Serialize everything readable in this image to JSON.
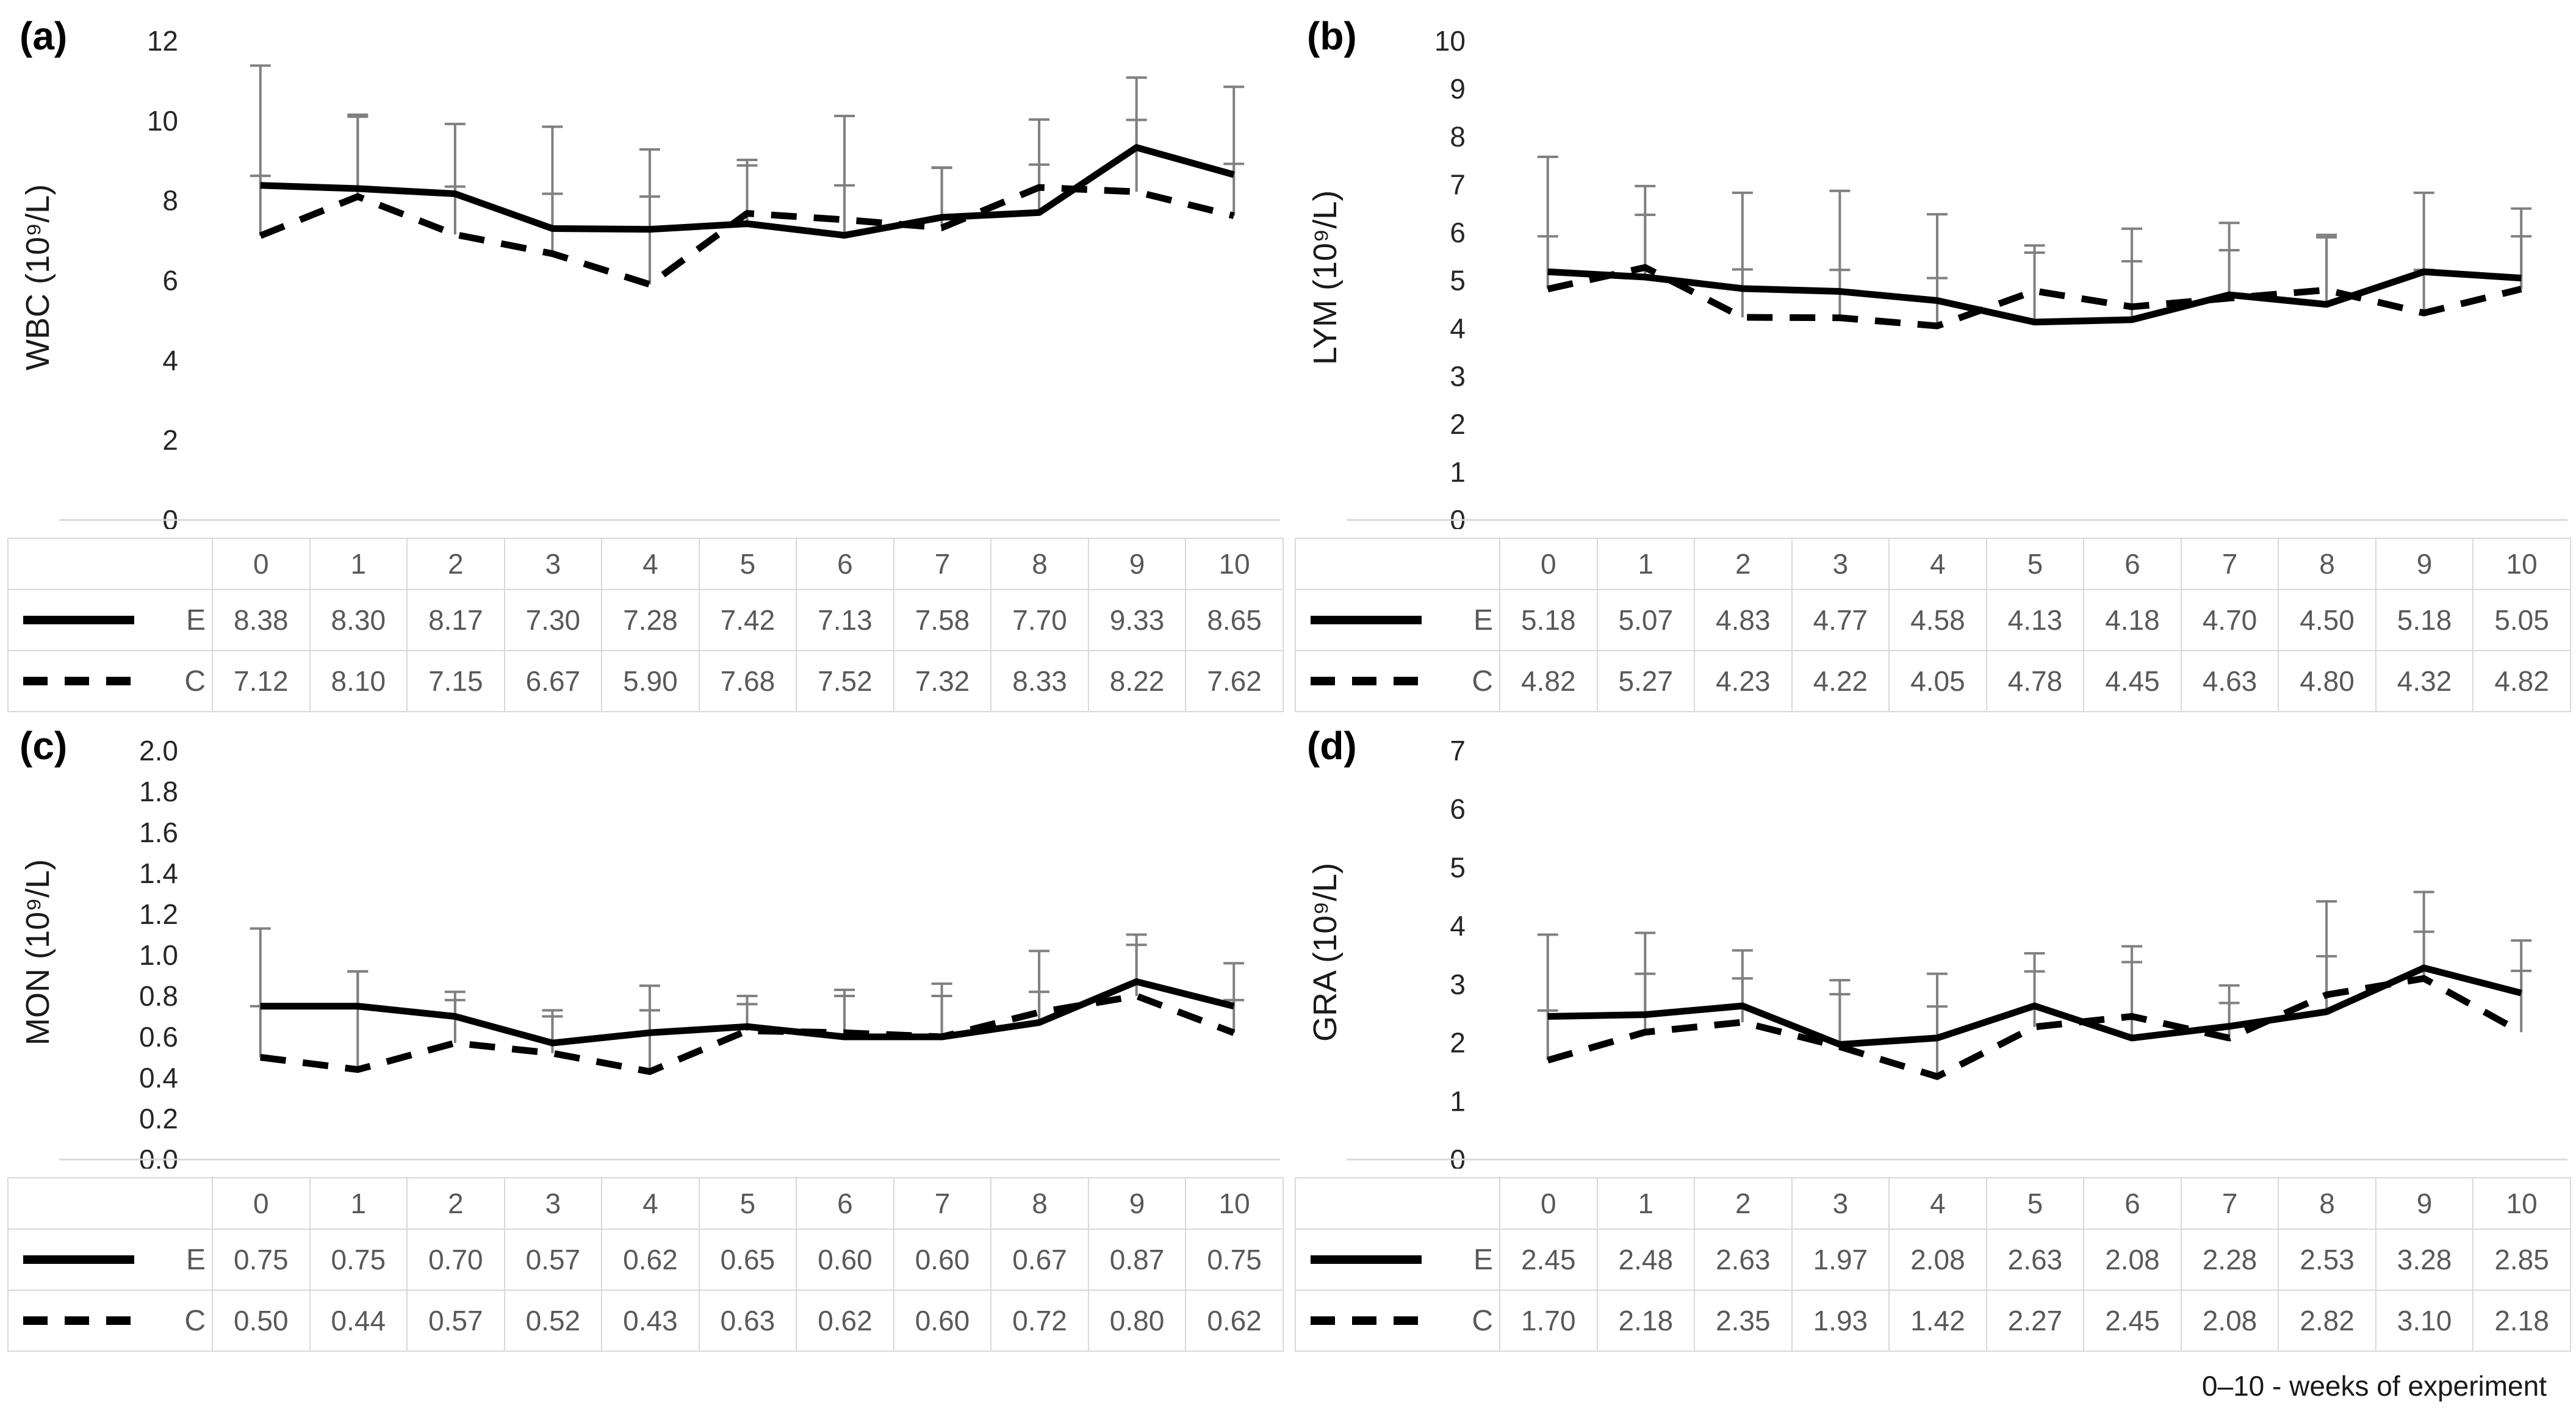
{
  "figure": {
    "footnote": "0–10 - weeks of experiment",
    "colors": {
      "line": "#000000",
      "error_bar": "#808080",
      "axis_line": "#d9d9d9",
      "tick_text": "#262626",
      "table_border": "#d9d9d9",
      "table_text": "#595959"
    }
  },
  "chart_data": [
    {
      "panel": "a",
      "panel_label": "(a)",
      "type": "line",
      "ylabel": "WBC (10⁹/L)",
      "xlabel": "",
      "ylim": [
        0,
        12
      ],
      "ytick_values": [
        12,
        10,
        8,
        6,
        4,
        2,
        0
      ],
      "ytick_labels": [
        "12",
        "10",
        "8",
        "6",
        "4",
        "2",
        "0"
      ],
      "categories": [
        "0",
        "1",
        "2",
        "3",
        "4",
        "5",
        "6",
        "7",
        "8",
        "9",
        "10"
      ],
      "grid": false,
      "legend_position": "table-left",
      "series": [
        {
          "name": "E",
          "line_style": "solid",
          "values": [
            8.38,
            8.3,
            8.17,
            7.3,
            7.28,
            7.42,
            7.13,
            7.58,
            7.7,
            9.33,
            8.65
          ],
          "errors_plus": [
            3.0,
            1.85,
            1.75,
            2.55,
            2.0,
            1.6,
            1.25,
            1.25,
            1.2,
            1.75,
            2.2
          ]
        },
        {
          "name": "C",
          "line_style": "dashed",
          "values": [
            7.12,
            8.1,
            7.15,
            6.67,
            5.9,
            7.68,
            7.52,
            7.32,
            8.33,
            8.22,
            7.62
          ],
          "errors_plus": [
            1.5,
            2.0,
            1.2,
            1.5,
            2.2,
            1.2,
            2.6,
            1.5,
            1.7,
            1.8,
            1.3
          ]
        }
      ]
    },
    {
      "panel": "b",
      "panel_label": "(b)",
      "type": "line",
      "ylabel": "LYM (10⁹/L)",
      "xlabel": "",
      "ylim": [
        0,
        10
      ],
      "ytick_values": [
        10,
        9,
        8,
        7,
        6,
        5,
        4,
        3,
        2,
        1,
        0
      ],
      "ytick_labels": [
        "10",
        "9",
        "8",
        "7",
        "6",
        "5",
        "4",
        "3",
        "2",
        "1",
        "0"
      ],
      "categories": [
        "0",
        "1",
        "2",
        "3",
        "4",
        "5",
        "6",
        "7",
        "8",
        "9",
        "10"
      ],
      "grid": false,
      "legend_position": "table-left",
      "series": [
        {
          "name": "E",
          "line_style": "solid",
          "values": [
            5.18,
            5.07,
            4.83,
            4.77,
            4.58,
            4.13,
            4.18,
            4.7,
            4.5,
            5.18,
            5.05
          ],
          "errors_plus": [
            2.4,
            1.9,
            2.0,
            2.1,
            1.8,
            1.6,
            1.9,
            1.5,
            1.45,
            1.65,
            1.45
          ]
        },
        {
          "name": "C",
          "line_style": "dashed",
          "values": [
            4.82,
            5.27,
            4.23,
            4.22,
            4.05,
            4.78,
            4.45,
            4.63,
            4.8,
            4.32,
            4.82
          ],
          "errors_plus": [
            1.1,
            1.1,
            1.0,
            1.0,
            1.0,
            0.8,
            0.95,
            1.0,
            1.1,
            0.9,
            1.1
          ]
        }
      ]
    },
    {
      "panel": "c",
      "panel_label": "(c)",
      "type": "line",
      "ylabel": "MON (10⁹/L)",
      "xlabel": "",
      "ylim": [
        0,
        2
      ],
      "ytick_values": [
        2.0,
        1.8,
        1.6,
        1.4,
        1.2,
        1.0,
        0.8,
        0.6,
        0.4,
        0.2,
        0.0
      ],
      "ytick_labels": [
        "2.0",
        "1.8",
        "1.6",
        "1.4",
        "1.2",
        "1.0",
        "0.8",
        "0.6",
        "0.4",
        "0.2",
        "0.0"
      ],
      "categories": [
        "0",
        "1",
        "2",
        "3",
        "4",
        "5",
        "6",
        "7",
        "8",
        "9",
        "10"
      ],
      "grid": false,
      "legend_position": "table-left",
      "series": [
        {
          "name": "E",
          "line_style": "solid",
          "values": [
            0.75,
            0.75,
            0.7,
            0.57,
            0.62,
            0.65,
            0.6,
            0.6,
            0.67,
            0.87,
            0.75
          ],
          "errors_plus": [
            0.38,
            0.17,
            0.12,
            0.16,
            0.23,
            0.15,
            0.23,
            0.26,
            0.35,
            0.23,
            0.21
          ]
        },
        {
          "name": "C",
          "line_style": "dashed",
          "values": [
            0.5,
            0.44,
            0.57,
            0.52,
            0.43,
            0.63,
            0.62,
            0.6,
            0.72,
            0.8,
            0.62
          ],
          "errors_plus": [
            0.25,
            0.48,
            0.21,
            0.18,
            0.3,
            0.13,
            0.18,
            0.2,
            0.1,
            0.25,
            0.16
          ]
        }
      ]
    },
    {
      "panel": "d",
      "panel_label": "(d)",
      "type": "line",
      "ylabel": "GRA (10⁹/L)",
      "xlabel": "",
      "ylim": [
        0,
        7
      ],
      "ytick_values": [
        7,
        6,
        5,
        4,
        3,
        2,
        1,
        0
      ],
      "ytick_labels": [
        "7",
        "6",
        "5",
        "4",
        "3",
        "2",
        "1",
        "0"
      ],
      "categories": [
        "0",
        "1",
        "2",
        "3",
        "4",
        "5",
        "6",
        "7",
        "8",
        "9",
        "10"
      ],
      "grid": false,
      "legend_position": "table-left",
      "series": [
        {
          "name": "E",
          "line_style": "solid",
          "values": [
            2.45,
            2.48,
            2.63,
            1.97,
            2.08,
            2.63,
            2.08,
            2.28,
            2.53,
            3.28,
            2.85
          ],
          "errors_plus": [
            1.4,
            1.4,
            0.95,
            1.1,
            1.1,
            0.9,
            1.3,
            0.7,
            0.95,
            1.3,
            0.9
          ]
        },
        {
          "name": "C",
          "line_style": "dashed",
          "values": [
            1.7,
            2.18,
            2.35,
            1.93,
            1.42,
            2.27,
            2.45,
            2.08,
            2.82,
            3.1,
            2.18
          ],
          "errors_plus": [
            0.85,
            1.0,
            0.75,
            0.9,
            1.2,
            0.95,
            1.2,
            0.6,
            1.6,
            0.8,
            1.05
          ]
        }
      ]
    }
  ]
}
